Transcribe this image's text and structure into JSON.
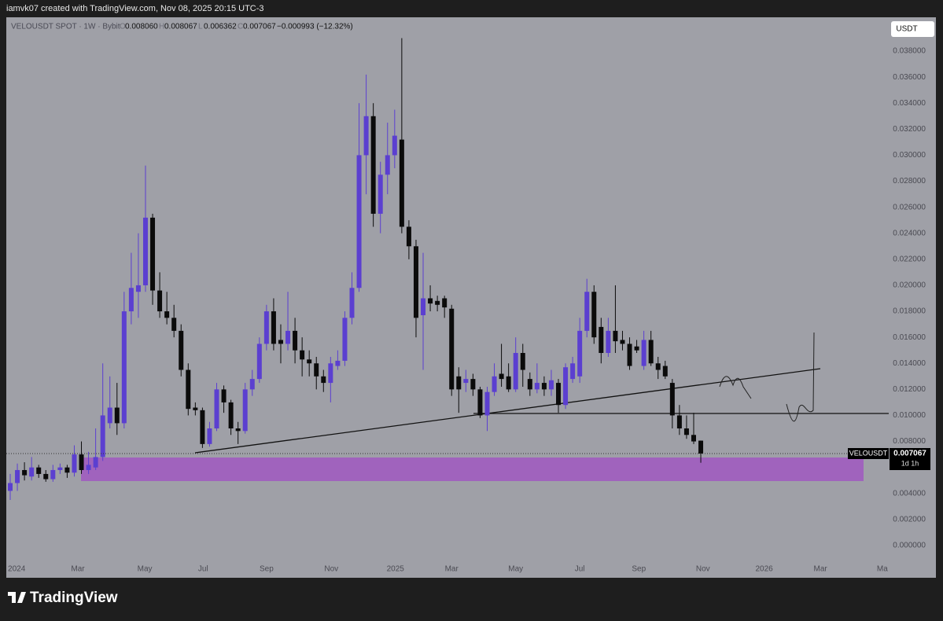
{
  "header": {
    "author_line": "iamvk07 created with TradingView.com, Nov 08, 2025 20:15 UTC-3",
    "symbol_line": "VELOUSDT SPOT · 1W · Bybit",
    "ohlc": [
      {
        "key": "O",
        "value": "0.008060"
      },
      {
        "key": "H",
        "value": "0.008067"
      },
      {
        "key": "L",
        "value": "0.006362"
      },
      {
        "key": "C",
        "value": "0.007067"
      }
    ],
    "change": "−0.000993 (−12.32%)",
    "currency": "USDT",
    "brand": "TradingView"
  },
  "chart_data": {
    "type": "candlestick",
    "symbol": "VELOUSDT",
    "countdown": "1d 1h",
    "colors": {
      "up": "#5b3fd0",
      "down": "#0b0b0b",
      "background": "#9fa0a7"
    },
    "value_labels": {
      "last_close": "0.007067"
    },
    "open": [
      0.0042,
      0.0048,
      0.0058,
      0.0053,
      0.006,
      0.0055,
      0.0051,
      0.0058,
      0.006,
      0.0056,
      0.007,
      0.0058,
      0.006,
      0.0068,
      0.0094,
      0.0106,
      0.0094,
      0.018,
      0.0195,
      0.02,
      0.0252,
      0.0196,
      0.018,
      0.0175,
      0.0165,
      0.0135,
      0.0106,
      0.0104,
      0.0078,
      0.009,
      0.012,
      0.011,
      0.009,
      0.0088,
      0.012,
      0.0128,
      0.0155,
      0.018,
      0.0158,
      0.0155,
      0.0165,
      0.015,
      0.0143,
      0.014,
      0.013,
      0.0125,
      0.0138,
      0.0142,
      0.0175,
      0.0198,
      0.03,
      0.033,
      0.0255,
      0.0285,
      0.03,
      0.0312,
      0.0245,
      0.023,
      0.0177,
      0.019,
      0.0188,
      0.019,
      0.0182,
      0.013,
      0.0125,
      0.0128,
      0.012,
      0.01,
      0.0118,
      0.0132,
      0.013,
      0.012,
      0.0148,
      0.0128,
      0.012,
      0.0125,
      0.012,
      0.0125,
      0.0108,
      0.0128,
      0.013,
      0.0165,
      0.0195,
      0.0168,
      0.0148,
      0.0165,
      0.0158,
      0.0155,
      0.0153,
      0.0138,
      0.0158,
      0.014,
      0.0138,
      0.0125,
      0.01,
      0.009,
      0.0085,
      0.00806
    ],
    "high": [
      0.0055,
      0.0063,
      0.0064,
      0.0068,
      0.0062,
      0.0058,
      0.0062,
      0.0063,
      0.0062,
      0.0077,
      0.008,
      0.0072,
      0.009,
      0.014,
      0.013,
      0.0125,
      0.0195,
      0.0225,
      0.024,
      0.0292,
      0.0255,
      0.021,
      0.0195,
      0.0185,
      0.017,
      0.014,
      0.011,
      0.0106,
      0.0095,
      0.0125,
      0.0123,
      0.0112,
      0.0095,
      0.0125,
      0.0135,
      0.016,
      0.0185,
      0.019,
      0.017,
      0.0195,
      0.0175,
      0.016,
      0.015,
      0.0145,
      0.0135,
      0.0145,
      0.015,
      0.018,
      0.021,
      0.034,
      0.0362,
      0.034,
      0.0295,
      0.0325,
      0.0335,
      0.039,
      0.025,
      0.0235,
      0.0225,
      0.02,
      0.0192,
      0.0192,
      0.0185,
      0.0137,
      0.0135,
      0.0132,
      0.0122,
      0.0122,
      0.014,
      0.0155,
      0.014,
      0.016,
      0.0155,
      0.0133,
      0.014,
      0.013,
      0.0135,
      0.0128,
      0.014,
      0.0145,
      0.0175,
      0.0205,
      0.02,
      0.0175,
      0.0175,
      0.02,
      0.0165,
      0.016,
      0.0158,
      0.0165,
      0.0165,
      0.0145,
      0.0142,
      0.0128,
      0.0108,
      0.01,
      0.0102,
      0.008067
    ],
    "low": [
      0.0035,
      0.0042,
      0.005,
      0.005,
      0.0052,
      0.0049,
      0.0049,
      0.0055,
      0.0052,
      0.0053,
      0.0055,
      0.0055,
      0.0058,
      0.0065,
      0.009,
      0.0085,
      0.009,
      0.017,
      0.0175,
      0.0195,
      0.0185,
      0.0175,
      0.017,
      0.016,
      0.013,
      0.01,
      0.01,
      0.0075,
      0.0076,
      0.0088,
      0.0102,
      0.0085,
      0.0078,
      0.0086,
      0.0115,
      0.0125,
      0.015,
      0.015,
      0.014,
      0.015,
      0.014,
      0.013,
      0.013,
      0.012,
      0.0118,
      0.011,
      0.0135,
      0.0138,
      0.017,
      0.0195,
      0.027,
      0.0245,
      0.024,
      0.027,
      0.029,
      0.024,
      0.022,
      0.016,
      0.0135,
      0.018,
      0.018,
      0.0175,
      0.0115,
      0.0102,
      0.0118,
      0.0115,
      0.0098,
      0.0088,
      0.0115,
      0.0122,
      0.0118,
      0.0118,
      0.0122,
      0.0115,
      0.0117,
      0.0115,
      0.0115,
      0.0102,
      0.0105,
      0.0125,
      0.0125,
      0.016,
      0.0155,
      0.014,
      0.0145,
      0.0148,
      0.015,
      0.0135,
      0.0148,
      0.0135,
      0.0138,
      0.0128,
      0.0128,
      0.009,
      0.0085,
      0.0082,
      0.0078,
      0.006362
    ],
    "close": [
      0.0048,
      0.0058,
      0.0054,
      0.006,
      0.0055,
      0.0051,
      0.0058,
      0.006,
      0.0056,
      0.007,
      0.0058,
      0.0062,
      0.0068,
      0.01,
      0.0106,
      0.0094,
      0.018,
      0.0198,
      0.02,
      0.0252,
      0.0196,
      0.018,
      0.0175,
      0.0165,
      0.0135,
      0.0105,
      0.0104,
      0.0078,
      0.009,
      0.012,
      0.011,
      0.009,
      0.0088,
      0.012,
      0.0128,
      0.0155,
      0.018,
      0.0155,
      0.0155,
      0.0165,
      0.015,
      0.0143,
      0.014,
      0.013,
      0.0125,
      0.014,
      0.0142,
      0.0175,
      0.0198,
      0.03,
      0.033,
      0.0255,
      0.0285,
      0.03,
      0.0315,
      0.0245,
      0.023,
      0.0175,
      0.019,
      0.0186,
      0.0185,
      0.0183,
      0.012,
      0.012,
      0.0128,
      0.012,
      0.01,
      0.0118,
      0.013,
      0.0128,
      0.012,
      0.0148,
      0.0135,
      0.012,
      0.0125,
      0.012,
      0.0127,
      0.0108,
      0.0137,
      0.014,
      0.0165,
      0.0195,
      0.016,
      0.0148,
      0.0165,
      0.0157,
      0.0155,
      0.0138,
      0.015,
      0.0158,
      0.014,
      0.0135,
      0.013,
      0.01,
      0.009,
      0.0085,
      0.008,
      0.007067
    ],
    "xlim": [
      -0.55,
      123.4
    ],
    "xticks": [
      {
        "value": 0.9,
        "label": "2024"
      },
      {
        "value": 9.5,
        "label": "Mar"
      },
      {
        "value": 18.9,
        "label": "May"
      },
      {
        "value": 27.1,
        "label": "Jul"
      },
      {
        "value": 36.0,
        "label": "Sep"
      },
      {
        "value": 45.1,
        "label": "Nov"
      },
      {
        "value": 54.1,
        "label": "2025"
      },
      {
        "value": 62.0,
        "label": "Mar"
      },
      {
        "value": 71.0,
        "label": "May"
      },
      {
        "value": 80.0,
        "label": "Jul"
      },
      {
        "value": 88.3,
        "label": "Sep"
      },
      {
        "value": 97.3,
        "label": "Nov"
      },
      {
        "value": 105.9,
        "label": "2026"
      },
      {
        "value": 113.8,
        "label": "Mar"
      },
      {
        "value": 122.5,
        "label": "Ma"
      }
    ],
    "ylim": [
      -0.00115,
      0.0406
    ],
    "yticks": [
      {
        "value": 0.038,
        "label": "0.038000"
      },
      {
        "value": 0.036,
        "label": "0.036000"
      },
      {
        "value": 0.034,
        "label": "0.034000"
      },
      {
        "value": 0.032,
        "label": "0.032000"
      },
      {
        "value": 0.03,
        "label": "0.030000"
      },
      {
        "value": 0.028,
        "label": "0.028000"
      },
      {
        "value": 0.026,
        "label": "0.026000"
      },
      {
        "value": 0.024,
        "label": "0.024000"
      },
      {
        "value": 0.022,
        "label": "0.022000"
      },
      {
        "value": 0.02,
        "label": "0.020000"
      },
      {
        "value": 0.018,
        "label": "0.018000"
      },
      {
        "value": 0.016,
        "label": "0.016000"
      },
      {
        "value": 0.014,
        "label": "0.014000"
      },
      {
        "value": 0.012,
        "label": "0.012000"
      },
      {
        "value": 0.01,
        "label": "0.010000"
      },
      {
        "value": 0.008,
        "label": "0.008000"
      },
      {
        "value": 0.004,
        "label": "0.004000"
      },
      {
        "value": 0.002,
        "label": "0.002000"
      },
      {
        "value": 0,
        "label": "0.000000"
      }
    ],
    "grid": false
  }
}
